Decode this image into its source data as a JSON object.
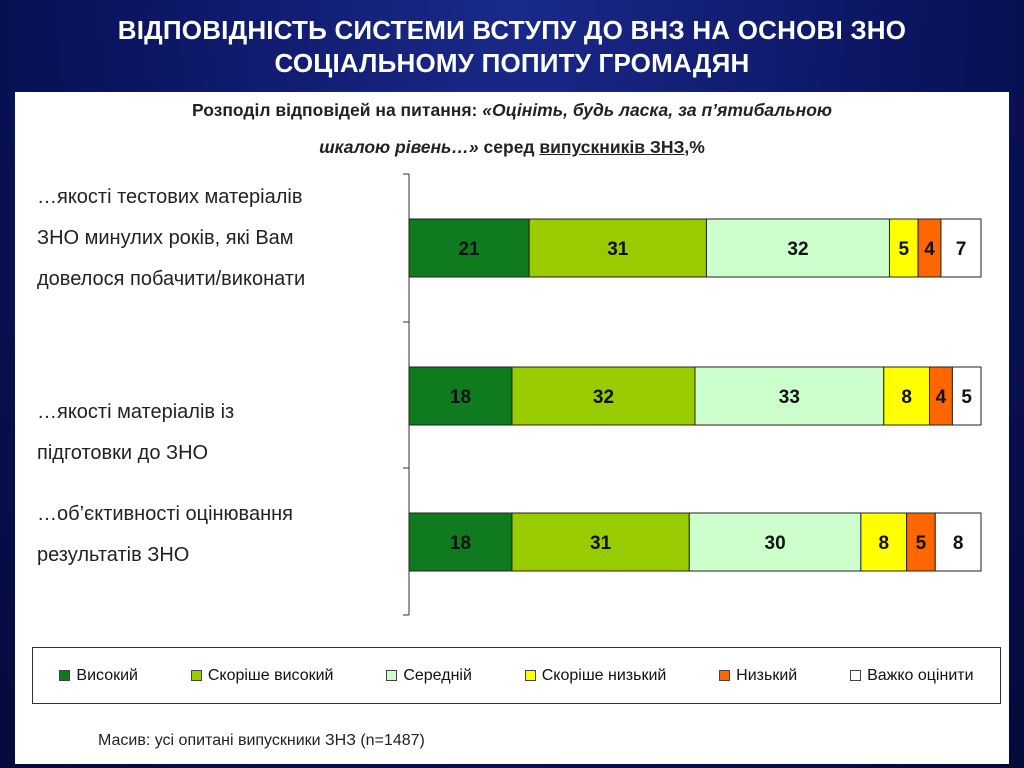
{
  "slide": {
    "title_line1": "ВІДПОВІДНІСТЬ СИСТЕМИ ВСТУПУ ДО ВНЗ НА ОСНОВІ ЗНО",
    "title_line2": "СОЦІАЛЬНОМУ ПОПИТУ ГРОМАДЯН"
  },
  "chart_data": {
    "type": "bar",
    "stacked": true,
    "orientation": "horizontal",
    "title_line1_plain": "Розподіл відповідей на питання: ",
    "title_line1_italic": "«Оцініть, будь ласка, за п’ятибальною",
    "title_line2_italic": "шкалою рівень…»",
    "title_line2_plain": " серед ",
    "title_line2_underlined": "випускників ЗНЗ",
    "title_line2_suffix": ",%",
    "categories": [
      [
        "…якості тестових матеріалів",
        "ЗНО минулих років, які Вам",
        "довелося побачити/виконати"
      ],
      [
        "…якості матеріалів із",
        "підготовки до ЗНО"
      ],
      [
        "…об’єктивності оцінювання",
        "результатів ЗНО"
      ]
    ],
    "series": [
      {
        "name": "Високий",
        "color": "#0f7a1e",
        "values": [
          21,
          18,
          18
        ]
      },
      {
        "name": "Скоріше високий",
        "color": "#99cc00",
        "values": [
          31,
          32,
          31
        ]
      },
      {
        "name": "Середній",
        "color": "#ccffcc",
        "values": [
          32,
          33,
          30
        ]
      },
      {
        "name": "Скоріше низький",
        "color": "#ffff00",
        "values": [
          5,
          8,
          8
        ]
      },
      {
        "name": "Низький",
        "color": "#ff6600",
        "values": [
          4,
          4,
          5
        ]
      },
      {
        "name": "Важко оцінити",
        "color": "#ffffff",
        "values": [
          7,
          5,
          8
        ]
      }
    ],
    "xlim": [
      0,
      100
    ],
    "legend_position": "bottom",
    "grid": false
  },
  "footnote": "Масив: усі опитані випускники ЗНЗ (n=1487)"
}
